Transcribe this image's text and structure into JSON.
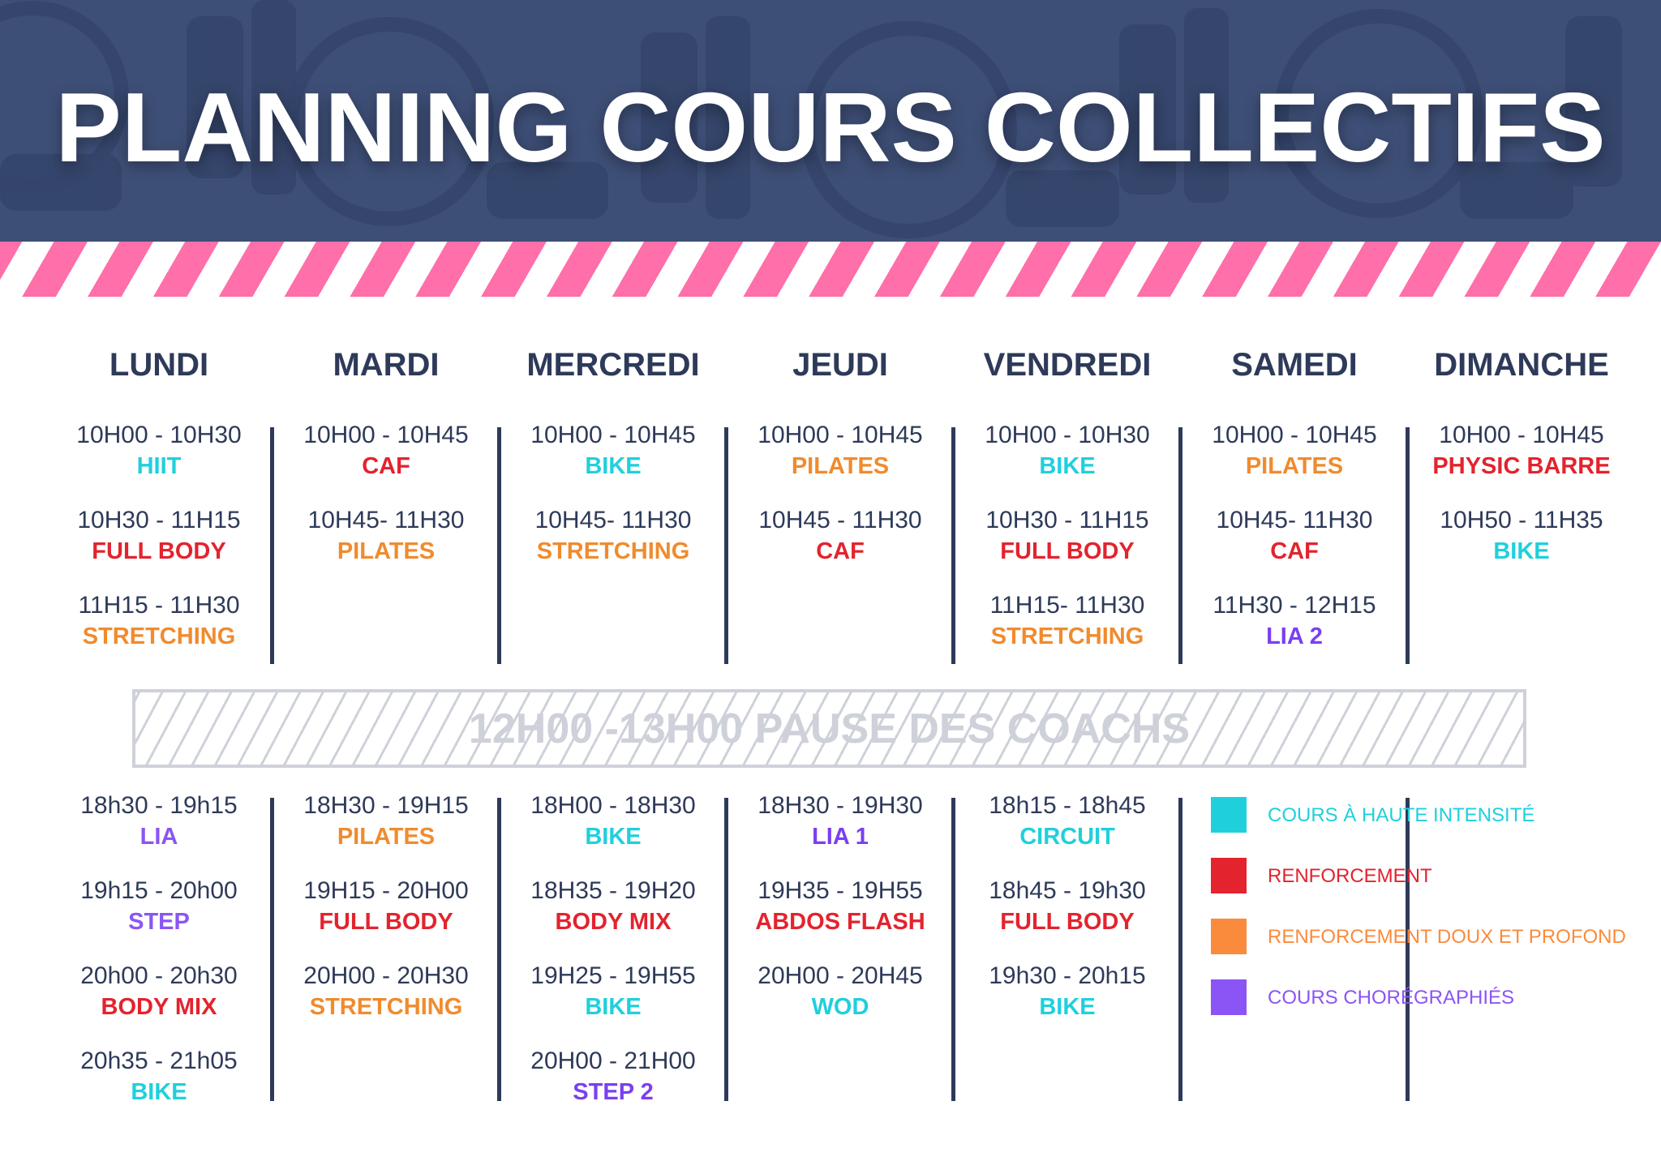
{
  "title": "PLANNING COURS COLLECTIFS",
  "colors": {
    "header_bg": "#3e4f77",
    "stripe_pink": "#ff6fa9",
    "dark_text": "#2e3a59",
    "cyan": "#1fd0dc",
    "red": "#e3232e",
    "orange": "#f08b2e",
    "purple": "#7b3ff0",
    "violet": "#8b55f5",
    "pause_grey": "#cfd1da"
  },
  "days": [
    "LUNDI",
    "MARDI",
    "MERCREDI",
    "JEUDI",
    "VENDREDI",
    "SAMEDI",
    "DIMANCHE"
  ],
  "morning": [
    [
      {
        "time": "10H00 - 10H30",
        "name": "HIIT",
        "category": "cyan"
      },
      {
        "time": "10H30 - 11H15",
        "name": "FULL BODY",
        "category": "red"
      },
      {
        "time": "11H15 - 11H30",
        "name": "STRETCHING",
        "category": "orange"
      }
    ],
    [
      {
        "time": "10H00 - 10H45",
        "name": "CAF",
        "category": "red"
      },
      {
        "time": "10H45- 11H30",
        "name": "PILATES",
        "category": "orange"
      }
    ],
    [
      {
        "time": "10H00 - 10H45",
        "name": "BIKE",
        "category": "cyan"
      },
      {
        "time": "10H45- 11H30",
        "name": "STRETCHING",
        "category": "orange"
      }
    ],
    [
      {
        "time": "10H00 - 10H45",
        "name": "PILATES",
        "category": "orange"
      },
      {
        "time": "10H45 - 11H30",
        "name": "CAF",
        "category": "red"
      }
    ],
    [
      {
        "time": "10H00 - 10H30",
        "name": "BIKE",
        "category": "cyan"
      },
      {
        "time": "10H30 - 11H15",
        "name": "FULL BODY",
        "category": "red"
      },
      {
        "time": "11H15- 11H30",
        "name": "STRETCHING",
        "category": "orange"
      }
    ],
    [
      {
        "time": "10H00 - 10H45",
        "name": "PILATES",
        "category": "orange"
      },
      {
        "time": "10H45- 11H30",
        "name": "CAF",
        "category": "red"
      },
      {
        "time": "11H30 - 12H15",
        "name": "LIA 2",
        "category": "purple"
      }
    ],
    [
      {
        "time": "10H00 - 10H45",
        "name": "PHYSIC BARRE",
        "category": "red"
      },
      {
        "time": "10H50 - 11H35",
        "name": "BIKE",
        "category": "cyan"
      }
    ]
  ],
  "pause": {
    "text": "12H00 -13H00  PAUSE DES COACHS"
  },
  "evening": [
    [
      {
        "time": "18h30 - 19h15",
        "name": "LIA",
        "category": "violet"
      },
      {
        "time": "19h15 - 20h00",
        "name": "STEP",
        "category": "violet"
      },
      {
        "time": "20h00 - 20h30",
        "name": "BODY MIX",
        "category": "red"
      },
      {
        "time": "20h35 - 21h05",
        "name": "BIKE",
        "category": "cyan"
      }
    ],
    [
      {
        "time": "18H30 - 19H15",
        "name": "PILATES",
        "category": "orange"
      },
      {
        "time": "19H15 - 20H00",
        "name": "FULL BODY",
        "category": "red"
      },
      {
        "time": "20H00 - 20H30",
        "name": "STRETCHING",
        "category": "orange"
      }
    ],
    [
      {
        "time": "18H00 - 18H30",
        "name": "BIKE",
        "category": "cyan"
      },
      {
        "time": "18H35 - 19H20",
        "name": "BODY MIX",
        "category": "red"
      },
      {
        "time": "19H25 - 19H55",
        "name": "BIKE",
        "category": "cyan"
      },
      {
        "time": "20H00 - 21H00",
        "name": "STEP 2",
        "category": "purple"
      }
    ],
    [
      {
        "time": "18H30 - 19H30",
        "name": "LIA 1",
        "category": "purple"
      },
      {
        "time": "19H35 - 19H55",
        "name": "ABDOS FLASH",
        "category": "red"
      },
      {
        "time": "20H00 - 20H45",
        "name": "WOD",
        "category": "cyan"
      }
    ],
    [
      {
        "time": "18h15 - 18h45",
        "name": "CIRCUIT",
        "category": "cyan"
      },
      {
        "time": "18h45 - 19h30",
        "name": "FULL BODY",
        "category": "red"
      },
      {
        "time": "19h30 - 20h15",
        "name": "BIKE",
        "category": "cyan"
      }
    ]
  ],
  "legend": [
    {
      "label": "COURS À HAUTE INTENSITÉ",
      "color": "#1fd0dc"
    },
    {
      "label": "RENFORCEMENT",
      "color": "#e3232e"
    },
    {
      "label": "RENFORCEMENT DOUX ET PROFOND",
      "color": "#fb8b3c"
    },
    {
      "label": "COURS CHORÉGRAPHIÉS",
      "color": "#8b55f5"
    }
  ]
}
